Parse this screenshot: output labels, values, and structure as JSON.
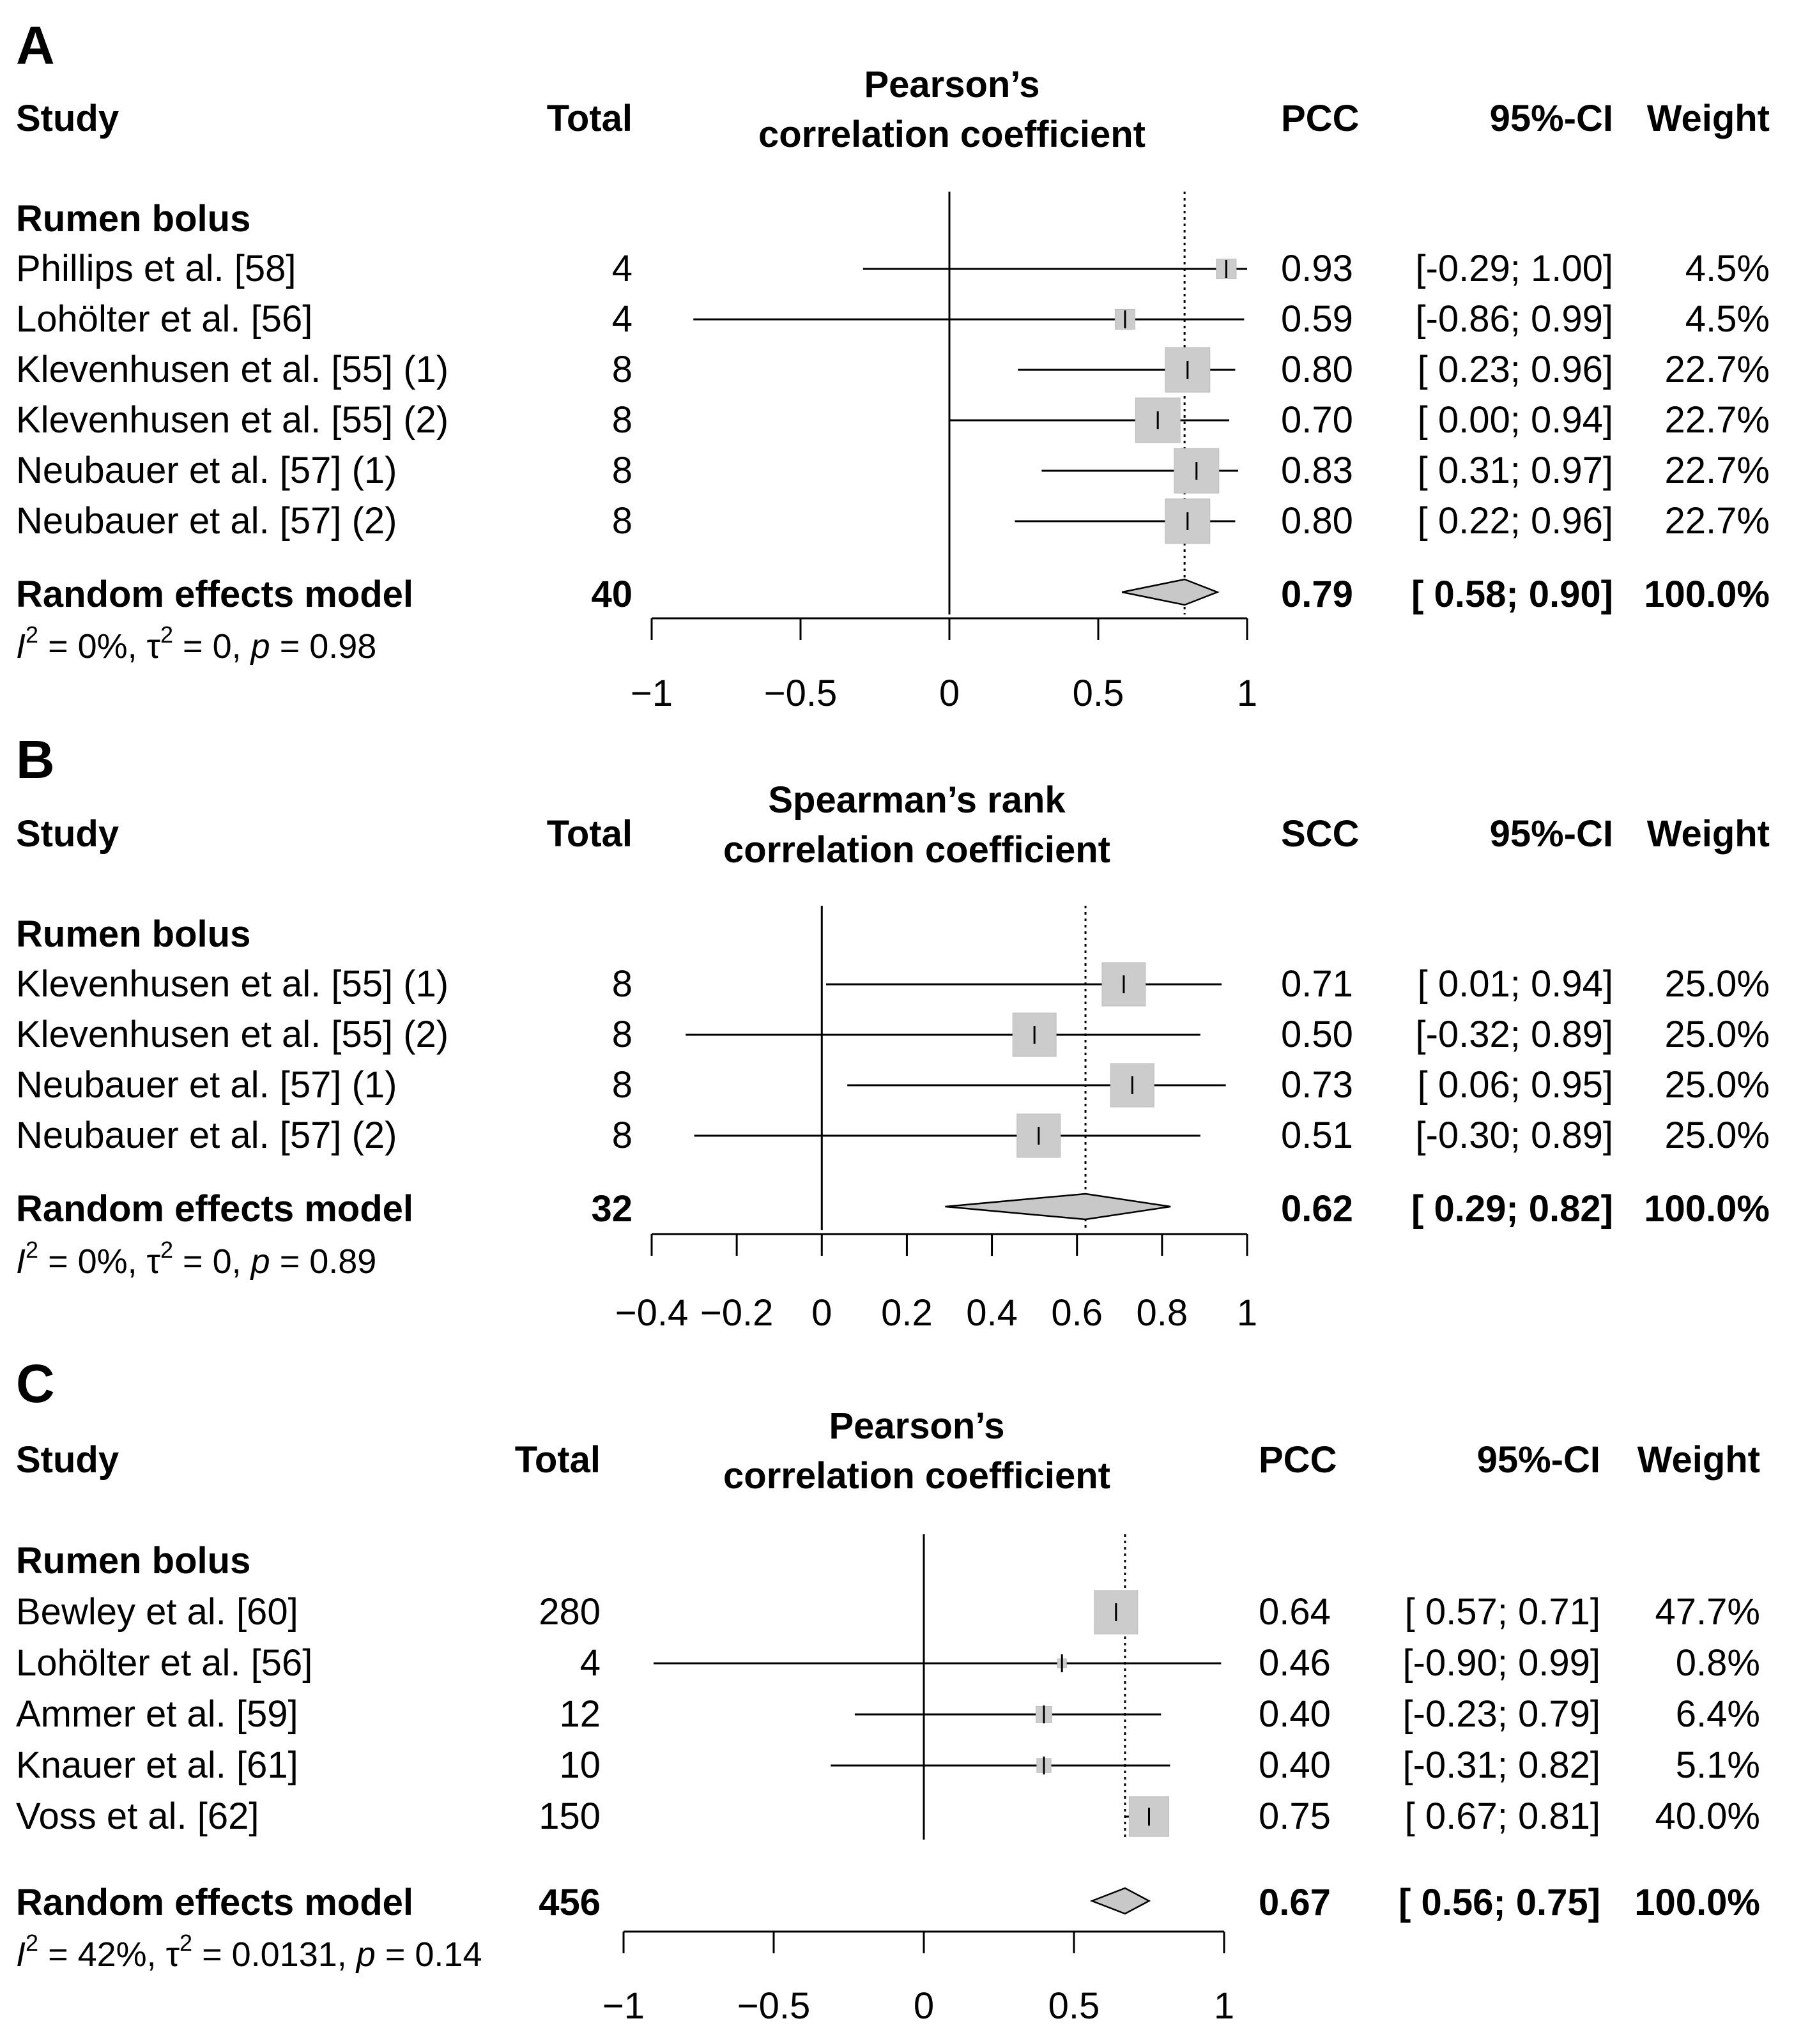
{
  "figure": {
    "colors": {
      "ink": "#000000",
      "marker": "#cccccc",
      "marker_stroke": "#bdbdbd",
      "diamond": "#c8c8c8"
    },
    "panels": [
      {
        "letter": "A",
        "headers": {
          "study": "Study",
          "total": "Total",
          "axis_title_1": "Pearson’s",
          "axis_title_2": "correlation coefficient",
          "est": "PCC",
          "ci": "95%-CI",
          "weight": "Weight"
        },
        "subgroup": "Rumen bolus",
        "rows": [
          {
            "study": "Phillips et al. [58]",
            "total": "4",
            "est_text": "0.93",
            "ci_text": "[-0.29; 1.00]",
            "weight_text": "4.5%"
          },
          {
            "study": "Lohölter et al. [56]",
            "total": "4",
            "est_text": "0.59",
            "ci_text": "[-0.86; 0.99]",
            "weight_text": "4.5%"
          },
          {
            "study": "Klevenhusen et al. [55] (1)",
            "total": "8",
            "est_text": "0.80",
            "ci_text": "[ 0.23; 0.96]",
            "weight_text": "22.7%"
          },
          {
            "study": "Klevenhusen et al. [55] (2)",
            "total": "8",
            "est_text": "0.70",
            "ci_text": "[ 0.00; 0.94]",
            "weight_text": "22.7%"
          },
          {
            "study": "Neubauer et al. [57] (1)",
            "total": "8",
            "est_text": "0.83",
            "ci_text": "[ 0.31; 0.97]",
            "weight_text": "22.7%"
          },
          {
            "study": "Neubauer et al. [57] (2)",
            "total": "8",
            "est_text": "0.80",
            "ci_text": "[ 0.22; 0.96]",
            "weight_text": "22.7%"
          }
        ],
        "summary": {
          "label": "Random effects model",
          "total": "40",
          "est_text": "0.79",
          "ci_text": "[ 0.58; 0.90]",
          "weight_text": "100.0%"
        },
        "stats": {
          "i2": "= 0%, ",
          "tau2": "= 0, ",
          "p": "= 0.98"
        },
        "ticks": [
          "−1",
          "−0.5",
          "0",
          "0.5",
          "1"
        ]
      },
      {
        "letter": "B",
        "headers": {
          "study": "Study",
          "total": "Total",
          "axis_title_1": "Spearman’s rank",
          "axis_title_2": "correlation coefficient",
          "est": "SCC",
          "ci": "95%-CI",
          "weight": "Weight"
        },
        "subgroup": "Rumen bolus",
        "rows": [
          {
            "study": "Klevenhusen et al. [55] (1)",
            "total": "8",
            "est_text": "0.71",
            "ci_text": "[ 0.01; 0.94]",
            "weight_text": "25.0%"
          },
          {
            "study": "Klevenhusen et al. [55] (2)",
            "total": "8",
            "est_text": "0.50",
            "ci_text": "[-0.32; 0.89]",
            "weight_text": "25.0%"
          },
          {
            "study": "Neubauer et al. [57] (1)",
            "total": "8",
            "est_text": "0.73",
            "ci_text": "[ 0.06; 0.95]",
            "weight_text": "25.0%"
          },
          {
            "study": "Neubauer et al. [57] (2)",
            "total": "8",
            "est_text": "0.51",
            "ci_text": "[-0.30; 0.89]",
            "weight_text": "25.0%"
          }
        ],
        "summary": {
          "label": "Random effects model",
          "total": "32",
          "est_text": "0.62",
          "ci_text": "[ 0.29; 0.82]",
          "weight_text": "100.0%"
        },
        "stats": {
          "i2": "= 0%, ",
          "tau2": "= 0, ",
          "p": "= 0.89"
        },
        "ticks": [
          "−0.4",
          "−0.2",
          "0",
          "0.2",
          "0.4",
          "0.6",
          "0.8",
          "1"
        ]
      },
      {
        "letter": "C",
        "headers": {
          "study": "Study",
          "total": "Total",
          "axis_title_1": "Pearson’s",
          "axis_title_2": "correlation coefficient",
          "est": "PCC",
          "ci": "95%-CI",
          "weight": "Weight"
        },
        "subgroup": "Rumen bolus",
        "rows": [
          {
            "study": "Bewley et al. [60]",
            "total": "280",
            "est_text": "0.64",
            "ci_text": "[ 0.57; 0.71]",
            "weight_text": "47.7%"
          },
          {
            "study": "Lohölter et al. [56]",
            "total": "4",
            "est_text": "0.46",
            "ci_text": "[-0.90; 0.99]",
            "weight_text": "0.8%"
          },
          {
            "study": "Ammer et al. [59]",
            "total": "12",
            "est_text": "0.40",
            "ci_text": "[-0.23; 0.79]",
            "weight_text": "6.4%"
          },
          {
            "study": "Knauer et al. [61]",
            "total": "10",
            "est_text": "0.40",
            "ci_text": "[-0.31; 0.82]",
            "weight_text": "5.1%"
          },
          {
            "study": "Voss et al. [62]",
            "total": "150",
            "est_text": "0.75",
            "ci_text": "[ 0.67; 0.81]",
            "weight_text": "40.0%"
          }
        ],
        "summary": {
          "label": "Random effects model",
          "total": "456",
          "est_text": "0.67",
          "ci_text": "[ 0.56; 0.75]",
          "weight_text": "100.0%"
        },
        "stats": {
          "i2": "= 42%, ",
          "tau2": "= 0.0131, ",
          "p": "= 0.14"
        },
        "ticks": [
          "−1",
          "−0.5",
          "0",
          "0.5",
          "1"
        ]
      }
    ]
  },
  "chart_data": [
    {
      "type": "forest",
      "title": "A — Pearson’s correlation coefficient (PCC)",
      "xlim": [
        -1,
        1
      ],
      "xticks": [
        -1,
        -0.5,
        0,
        0.5,
        1
      ],
      "null_line": 0,
      "reference_line": 0.79,
      "studies": [
        {
          "label": "Phillips et al. [58]",
          "n": 4,
          "estimate": 0.93,
          "ci": [
            -0.29,
            1.0
          ],
          "weight": 4.5
        },
        {
          "label": "Lohölter et al. [56]",
          "n": 4,
          "estimate": 0.59,
          "ci": [
            -0.86,
            0.99
          ],
          "weight": 4.5
        },
        {
          "label": "Klevenhusen et al. [55] (1)",
          "n": 8,
          "estimate": 0.8,
          "ci": [
            0.23,
            0.96
          ],
          "weight": 22.7
        },
        {
          "label": "Klevenhusen et al. [55] (2)",
          "n": 8,
          "estimate": 0.7,
          "ci": [
            0.0,
            0.94
          ],
          "weight": 22.7
        },
        {
          "label": "Neubauer et al. [57] (1)",
          "n": 8,
          "estimate": 0.83,
          "ci": [
            0.31,
            0.97
          ],
          "weight": 22.7
        },
        {
          "label": "Neubauer et al. [57] (2)",
          "n": 8,
          "estimate": 0.8,
          "ci": [
            0.22,
            0.96
          ],
          "weight": 22.7
        }
      ],
      "summary": {
        "label": "Random effects model",
        "n": 40,
        "estimate": 0.79,
        "ci": [
          0.58,
          0.9
        ],
        "weight": 100.0
      },
      "heterogeneity": {
        "I2_percent": 0,
        "tau2": 0,
        "p": 0.98
      }
    },
    {
      "type": "forest",
      "title": "B — Spearman’s rank correlation coefficient (SCC)",
      "xlim": [
        -0.4,
        1
      ],
      "xticks": [
        -0.4,
        -0.2,
        0,
        0.2,
        0.4,
        0.6,
        0.8,
        1
      ],
      "null_line": 0,
      "reference_line": 0.62,
      "studies": [
        {
          "label": "Klevenhusen et al. [55] (1)",
          "n": 8,
          "estimate": 0.71,
          "ci": [
            0.01,
            0.94
          ],
          "weight": 25.0
        },
        {
          "label": "Klevenhusen et al. [55] (2)",
          "n": 8,
          "estimate": 0.5,
          "ci": [
            -0.32,
            0.89
          ],
          "weight": 25.0
        },
        {
          "label": "Neubauer et al. [57] (1)",
          "n": 8,
          "estimate": 0.73,
          "ci": [
            0.06,
            0.95
          ],
          "weight": 25.0
        },
        {
          "label": "Neubauer et al. [57] (2)",
          "n": 8,
          "estimate": 0.51,
          "ci": [
            -0.3,
            0.89
          ],
          "weight": 25.0
        }
      ],
      "summary": {
        "label": "Random effects model",
        "n": 32,
        "estimate": 0.62,
        "ci": [
          0.29,
          0.82
        ],
        "weight": 100.0
      },
      "heterogeneity": {
        "I2_percent": 0,
        "tau2": 0,
        "p": 0.89
      }
    },
    {
      "type": "forest",
      "title": "C — Pearson’s correlation coefficient (PCC)",
      "xlim": [
        -1,
        1
      ],
      "xticks": [
        -1,
        -0.5,
        0,
        0.5,
        1
      ],
      "null_line": 0,
      "reference_line": 0.67,
      "studies": [
        {
          "label": "Bewley et al. [60]",
          "n": 280,
          "estimate": 0.64,
          "ci": [
            0.57,
            0.71
          ],
          "weight": 47.7
        },
        {
          "label": "Lohölter et al. [56]",
          "n": 4,
          "estimate": 0.46,
          "ci": [
            -0.9,
            0.99
          ],
          "weight": 0.8
        },
        {
          "label": "Ammer et al. [59]",
          "n": 12,
          "estimate": 0.4,
          "ci": [
            -0.23,
            0.79
          ],
          "weight": 6.4
        },
        {
          "label": "Knauer et al. [61]",
          "n": 10,
          "estimate": 0.4,
          "ci": [
            -0.31,
            0.82
          ],
          "weight": 5.1
        },
        {
          "label": "Voss et al. [62]",
          "n": 150,
          "estimate": 0.75,
          "ci": [
            0.67,
            0.81
          ],
          "weight": 40.0
        }
      ],
      "summary": {
        "label": "Random effects model",
        "n": 456,
        "estimate": 0.67,
        "ci": [
          0.56,
          0.75
        ],
        "weight": 100.0
      },
      "heterogeneity": {
        "I2_percent": 42,
        "tau2": 0.0131,
        "p": 0.14
      }
    }
  ]
}
